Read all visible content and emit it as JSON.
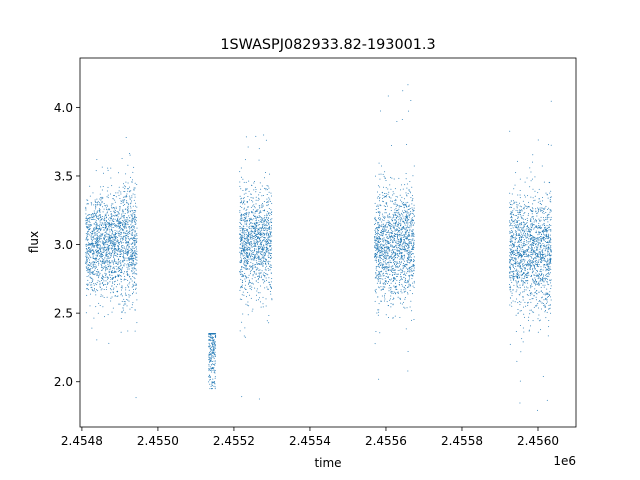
{
  "chart_data": {
    "type": "scatter",
    "title": "1SWASPJ082933.82-193001.3",
    "xlabel": "time",
    "ylabel": "flux",
    "x_offset_label": "1e6",
    "xlim": [
      2454795,
      2456100
    ],
    "ylim": [
      1.67,
      4.36
    ],
    "x_ticks": [
      2454800,
      2455000,
      2455200,
      2455400,
      2455600,
      2455800,
      2456000
    ],
    "x_tick_labels": [
      "2.4548",
      "2.4550",
      "2.4552",
      "2.4554",
      "2.4556",
      "2.4558",
      "2.4560"
    ],
    "y_ticks": [
      2.0,
      2.5,
      3.0,
      3.5,
      4.0
    ],
    "y_tick_labels": [
      "2.0",
      "2.5",
      "3.0",
      "3.5",
      "4.0"
    ],
    "grid": false,
    "marker_color": "#1f77b4",
    "series": [
      {
        "name": "",
        "segments": [
          {
            "x_range": [
              2454810,
              2454895
            ],
            "center": 3.0,
            "spread": 0.18,
            "max": 3.62,
            "min": 2.28
          },
          {
            "x_range": [
              2454895,
              2454945
            ],
            "center": 3.02,
            "spread": 0.22,
            "max": 3.78,
            "min": 1.85
          },
          {
            "x_range": [
              2455133,
              2455152
            ],
            "center": 2.25,
            "spread": 0.15,
            "max": 2.35,
            "min": 1.95
          },
          {
            "x_range": [
              2455215,
              2455300
            ],
            "center": 3.02,
            "spread": 0.19,
            "max": 3.85,
            "min": 1.87
          },
          {
            "x_range": [
              2455570,
              2455675
            ],
            "center": 3.0,
            "spread": 0.2,
            "max": 4.25,
            "min": 1.8
          },
          {
            "x_range": [
              2455925,
              2456035
            ],
            "center": 2.95,
            "spread": 0.21,
            "max": 4.23,
            "min": 1.78
          }
        ]
      }
    ]
  }
}
